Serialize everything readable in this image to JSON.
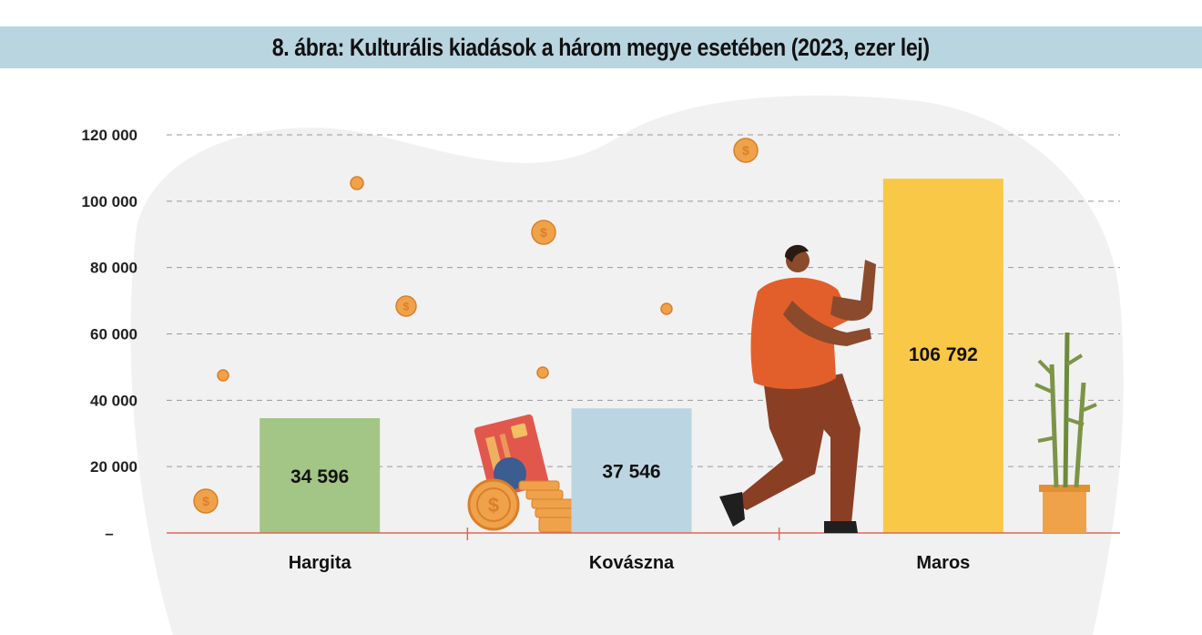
{
  "title": "8. ábra: Kulturális kiadások a három megye esetében (2023, ezer lej)",
  "colors": {
    "title_band": "#b9d5e0",
    "blob": "#f1f1f1",
    "axis_line": "#e0675a",
    "grid": "#999999",
    "coin": "#f0a24a",
    "coin_dark": "#d97f2b"
  },
  "chart_data": {
    "type": "bar",
    "categories": [
      "Hargita",
      "Kovászna",
      "Maros"
    ],
    "values": [
      34596,
      37546,
      106792
    ],
    "value_labels": [
      "34 596",
      "37 546",
      "106 792"
    ],
    "bar_colors": [
      "#a3c585",
      "#bcd5e2",
      "#f9c846"
    ],
    "ylim": [
      0,
      120000
    ],
    "yticks": [
      0,
      20000,
      40000,
      60000,
      80000,
      100000,
      120000
    ],
    "ytick_labels": [
      "–",
      "20 000",
      "40 000",
      "60 000",
      "80 000",
      "100 000",
      "120 000"
    ],
    "grid": true,
    "legend": "none"
  },
  "illustrations": {
    "person": "man-pushing-bar-illustration",
    "plant": "bamboo-plant-icon",
    "coins": "coin-icon",
    "coin_stack": "coin-stack-icon",
    "card": "credit-card-icon"
  }
}
